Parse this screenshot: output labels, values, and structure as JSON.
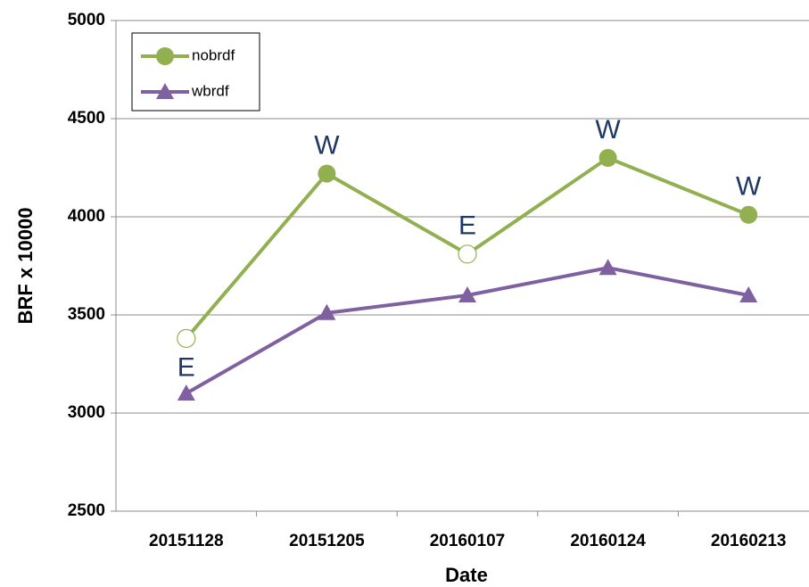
{
  "chart_data": {
    "type": "line",
    "y_label": "BRF x 10000",
    "x_label": "Date",
    "categories": [
      "20151128",
      "20151205",
      "20160107",
      "20160124",
      "20160213"
    ],
    "series": [
      {
        "name": "nobrdf",
        "color": "#92b050",
        "marker": "circle",
        "values": [
          3380,
          4220,
          3810,
          4300,
          4010
        ],
        "hollow": [
          true,
          false,
          true,
          false,
          false
        ],
        "annotations": [
          "E",
          "W",
          "E",
          "W",
          "W"
        ]
      },
      {
        "name": "wbrdf",
        "color": "#7f60a0",
        "marker": "triangle",
        "values": [
          3100,
          3510,
          3600,
          3740,
          3600
        ]
      }
    ],
    "ylim": [
      2500,
      5000
    ],
    "yticks": [
      2500,
      3000,
      3500,
      4000,
      4500,
      5000
    ],
    "grid": true,
    "legend": "upper left"
  }
}
